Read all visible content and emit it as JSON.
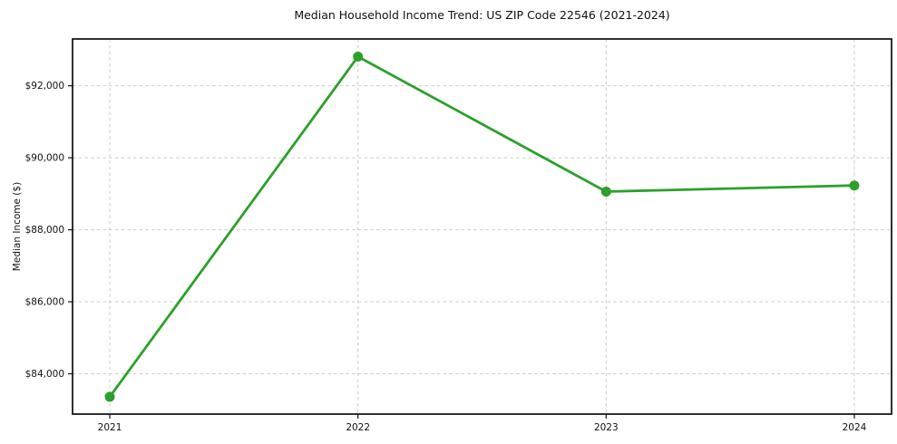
{
  "chart_data": {
    "type": "line",
    "title": "Median Household Income Trend: US ZIP Code 22546 (2021-2024)",
    "xlabel": "",
    "ylabel": "Median Income ($)",
    "x": [
      2021,
      2022,
      2023,
      2024
    ],
    "x_tick_labels": [
      "2021",
      "2022",
      "2023",
      "2024"
    ],
    "values": [
      83360,
      92810,
      89060,
      89230
    ],
    "yticks": {
      "values": [
        84000,
        86000,
        88000,
        90000,
        92000
      ],
      "labels": [
        "$84,000",
        "$86,000",
        "$88,000",
        "$90,000",
        "$92,000"
      ]
    },
    "ylim": [
      82880,
      93300
    ],
    "xlim": [
      2020.85,
      2024.15
    ],
    "grid": true,
    "grid_style": "dashed",
    "legend": "none",
    "line_color": "#2ca02c",
    "marker_color": "#2ca02c",
    "grid_color": "#cccccc",
    "spine_color": "#1a1a1a",
    "text_color": "#111111"
  }
}
